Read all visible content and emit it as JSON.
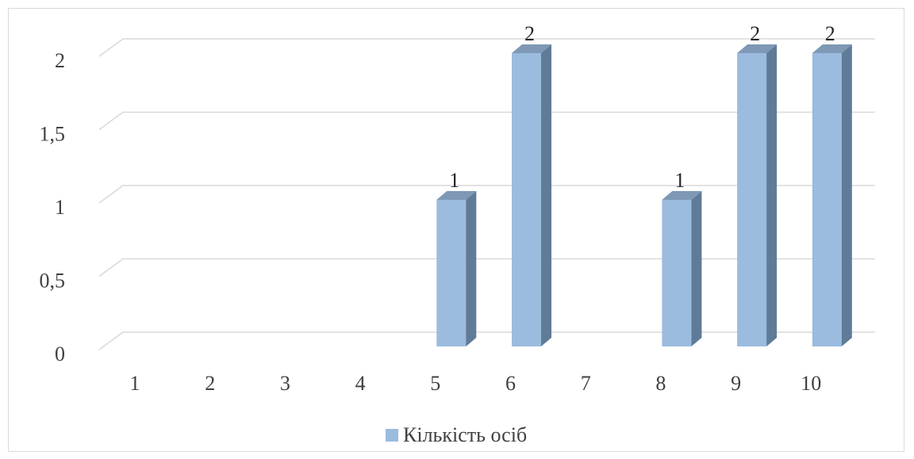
{
  "chart_data": {
    "type": "bar",
    "style": "3d-column",
    "categories": [
      "1",
      "2",
      "3",
      "4",
      "5",
      "6",
      "7",
      "8",
      "9",
      "10"
    ],
    "series": [
      {
        "name": "Кількість осіб",
        "values": [
          0,
          0,
          0,
          0,
          1,
          2,
          0,
          1,
          2,
          2
        ],
        "data_labels": [
          "",
          "",
          "",
          "",
          "1",
          "2",
          "",
          "1",
          "2",
          "2"
        ],
        "color": "#9BBBDF"
      }
    ],
    "ylim": [
      0,
      2
    ],
    "y_ticks": [
      "0",
      "0,5",
      "1",
      "1,5",
      "2"
    ],
    "y_tick_values": [
      0,
      0.5,
      1,
      1.5,
      2
    ],
    "grid": true,
    "legend_position": "bottom",
    "title": "",
    "xlabel": "",
    "ylabel": ""
  },
  "colors": {
    "bar_front": "#9BBBDF",
    "bar_side": "#5F7B98",
    "bar_top": "#7E98B5",
    "gridline": "#d9d9d9"
  }
}
